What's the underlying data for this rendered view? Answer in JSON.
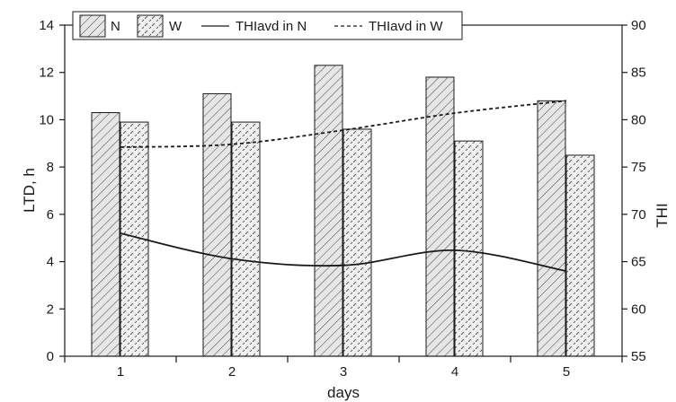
{
  "chart_data": {
    "type": "bar",
    "xlabel": "days",
    "ylabel": "LTD, h",
    "y2label": "THI",
    "categories": [
      "1",
      "2",
      "3",
      "4",
      "5"
    ],
    "ylim": [
      0,
      14
    ],
    "y2lim": [
      55,
      90
    ],
    "yticks": [
      0,
      2,
      4,
      6,
      8,
      10,
      12,
      14
    ],
    "y2ticks": [
      55,
      60,
      65,
      70,
      75,
      80,
      85,
      90
    ],
    "grid": false,
    "legend_position": "top",
    "series": [
      {
        "name": "N",
        "kind": "bar",
        "axis": "left",
        "pattern": "dense-diagonal-hatch",
        "values": [
          10.3,
          11.1,
          12.3,
          11.8,
          10.8
        ]
      },
      {
        "name": "W",
        "kind": "bar",
        "axis": "left",
        "pattern": "sparse-dash-hatch",
        "values": [
          9.9,
          9.9,
          9.6,
          9.1,
          8.5
        ]
      },
      {
        "name": "THIavd in N",
        "kind": "line",
        "axis": "right",
        "style": "solid",
        "values": [
          68.0,
          65.3,
          64.6,
          66.2,
          64.0
        ]
      },
      {
        "name": "THIavd in W",
        "kind": "line",
        "axis": "right",
        "style": "dashed",
        "values": [
          77.1,
          77.4,
          78.9,
          80.7,
          82.0
        ]
      }
    ],
    "colors": {
      "ink": "#1a1a1a",
      "bar_fill": "#e6e6e6",
      "background": "#ffffff"
    }
  }
}
